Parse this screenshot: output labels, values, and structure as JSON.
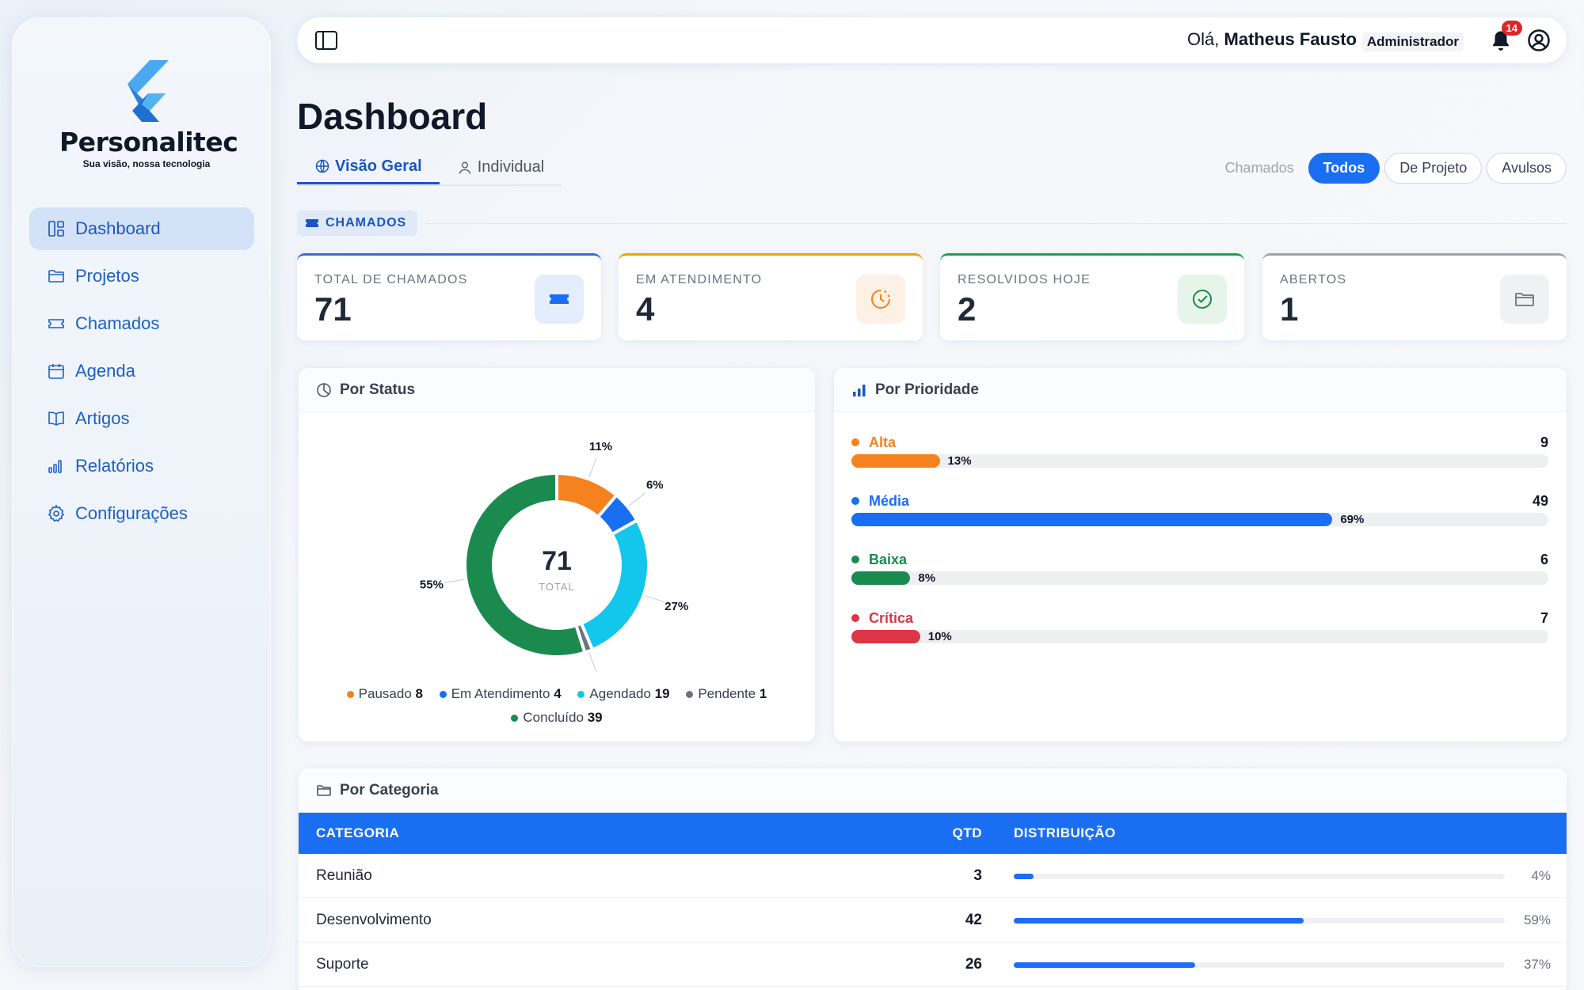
{
  "brand": {
    "name": "Personalitec",
    "tagline": "Sua visão, nossa tecnologia"
  },
  "sidebar": {
    "items": [
      {
        "label": "Dashboard",
        "icon": "dashboard-icon",
        "active": true
      },
      {
        "label": "Projetos",
        "icon": "folder-icon"
      },
      {
        "label": "Chamados",
        "icon": "ticket-icon"
      },
      {
        "label": "Agenda",
        "icon": "calendar-icon"
      },
      {
        "label": "Artigos",
        "icon": "book-icon"
      },
      {
        "label": "Relatórios",
        "icon": "bar-chart-icon"
      },
      {
        "label": "Configurações",
        "icon": "gear-icon"
      }
    ]
  },
  "topbar": {
    "greeting_prefix": "Olá,",
    "user_name": "Matheus Fausto",
    "role": "Administrador",
    "notification_count": "14"
  },
  "page": {
    "title": "Dashboard"
  },
  "tabs": [
    {
      "label": "Visão Geral",
      "icon": "globe-icon",
      "active": true
    },
    {
      "label": "Individual",
      "icon": "user-icon",
      "active": false
    }
  ],
  "filters": {
    "label": "Chamados",
    "options": [
      {
        "label": "Todos",
        "active": true
      },
      {
        "label": "De Projeto",
        "active": false
      },
      {
        "label": "Avulsos",
        "active": false
      }
    ]
  },
  "section": {
    "label": "CHAMADOS"
  },
  "stats": [
    {
      "label": "TOTAL DE CHAMADOS",
      "value": "71",
      "icon": "ticket-icon",
      "accent": "#2b6fe0"
    },
    {
      "label": "EM ATENDIMENTO",
      "value": "4",
      "icon": "clock-icon",
      "accent": "#f59e0b"
    },
    {
      "label": "RESOLVIDOS HOJE",
      "value": "2",
      "icon": "check-circle-icon",
      "accent": "#16a34a"
    },
    {
      "label": "ABERTOS",
      "value": "1",
      "icon": "folder-icon",
      "accent": "#9ca3af"
    }
  ],
  "status_card": {
    "title": "Por Status",
    "center_value": "71",
    "center_label": "TOTAL"
  },
  "priority_card": {
    "title": "Por Prioridade"
  },
  "category_card": {
    "title": "Por Categoria",
    "columns": {
      "category": "CATEGORIA",
      "qty": "QTD",
      "distribution": "DISTRIBUIÇÃO"
    },
    "rows": [
      {
        "category": "Reunião",
        "qty": "3",
        "pct": "4%",
        "fraction": 0.04
      },
      {
        "category": "Desenvolvimento",
        "qty": "42",
        "pct": "59%",
        "fraction": 0.59
      },
      {
        "category": "Suporte",
        "qty": "26",
        "pct": "37%",
        "fraction": 0.37
      }
    ]
  },
  "chart_data": [
    {
      "type": "pie",
      "title": "Por Status",
      "slices": [
        {
          "name": "Pausado",
          "value": 8,
          "label": "11%",
          "color": "#f5821f"
        },
        {
          "name": "Em Atendimento",
          "value": 4,
          "label": "6%",
          "color": "#1a6ef2"
        },
        {
          "name": "Agendado",
          "value": 19,
          "label": "27%",
          "color": "#12c6ec"
        },
        {
          "name": "Pendente",
          "value": 1,
          "label": "",
          "color": "#6b7280"
        },
        {
          "name": "Concluído",
          "value": 39,
          "label": "55%",
          "color": "#1b8a4f"
        }
      ],
      "legend_position": "bottom"
    },
    {
      "type": "bar",
      "title": "Por Prioridade",
      "categories": [
        "Alta",
        "Média",
        "Baixa",
        "Crítica"
      ],
      "values": [
        9,
        49,
        6,
        7
      ],
      "percent_labels": [
        "13%",
        "69%",
        "8%",
        "10%"
      ],
      "colors": [
        "#f5821f",
        "#1a6ef2",
        "#1b8a4f",
        "#dc3545"
      ]
    }
  ]
}
